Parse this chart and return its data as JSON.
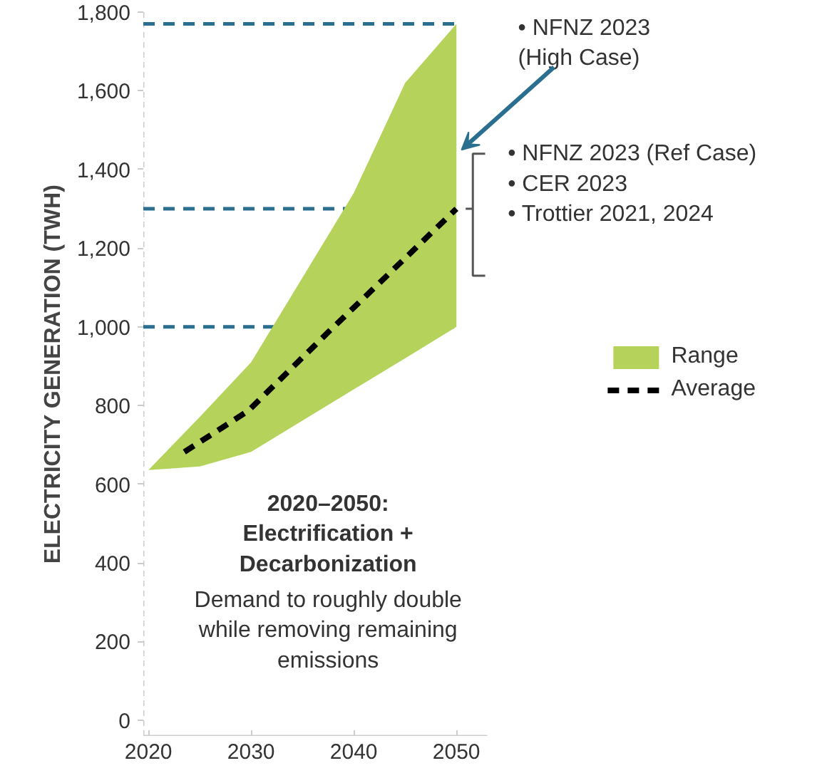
{
  "chart_data": {
    "type": "area",
    "ylabel": "ELECTRICITY GENERATION (TWH)",
    "xlim": [
      2019.5,
      2053
    ],
    "ylim": [
      -40,
      1800
    ],
    "xticks": [
      2020,
      2030,
      2040,
      2050
    ],
    "yticks": [
      0,
      200,
      400,
      600,
      800,
      {
        "value": 1000,
        "label": "1,000"
      },
      {
        "value": 1200,
        "label": "1,200"
      },
      {
        "value": 1400,
        "label": "1,400"
      },
      {
        "value": 1600,
        "label": "1,600"
      },
      {
        "value": 1800,
        "label": "1,800"
      }
    ],
    "series": [
      {
        "name": "Range",
        "color": "#b5d25a",
        "x": [
          2020,
          2025,
          2030,
          2040,
          2045,
          2050
        ],
        "lower": [
          636,
          645,
          682,
          841,
          920,
          1000
        ],
        "upper": [
          636,
          771,
          910,
          1340,
          1620,
          1770
        ],
        "values": [
          null,
          null,
          null,
          null,
          null,
          null
        ]
      },
      {
        "name": "Average",
        "type": "line",
        "color": "#000000",
        "line_style": "dashed",
        "x": [
          2023.5,
          2029.7,
          2037.5,
          2050
        ],
        "values": [
          682,
          786,
          986,
          1300
        ]
      }
    ],
    "ref_lines": [
      {
        "axis": "y",
        "value": 1000,
        "color": "#2a6f8f",
        "line_style": "dashed"
      },
      {
        "axis": "y",
        "value": 1300,
        "color": "#2a6f8f",
        "line_style": "dashed"
      },
      {
        "axis": "y",
        "value": 1770,
        "color": "#2a6f8f",
        "line_style": "dashed"
      }
    ],
    "annotations": [
      {
        "text": "• NFNZ 2023\n   (High Case)",
        "x": 2050,
        "y": 1450
      },
      "• NFNZ 2023 (Ref Case)\n• CER 2023\n• Trottier 2021, 2024",
      "2020–2050:\nElectrification +\nDecarbonization",
      "Demand to roughly double\nwhile removing remaining\nemissions"
    ],
    "legend": "right",
    "grid": false
  }
}
